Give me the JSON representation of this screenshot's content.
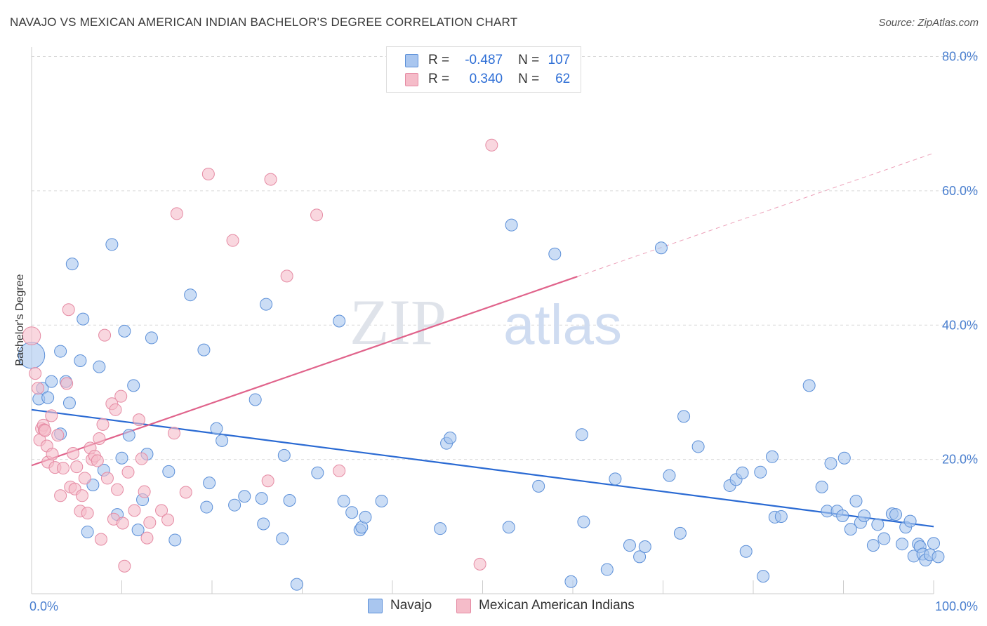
{
  "title": "NAVAJO VS MEXICAN AMERICAN INDIAN BACHELOR'S DEGREE CORRELATION CHART",
  "source": "Source: ZipAtlas.com",
  "watermark": {
    "zip": "ZIP",
    "atlas": "atlas"
  },
  "legend": {
    "r_label": "R =",
    "n_label": "N =",
    "rows": [
      {
        "r": "-0.487",
        "n": "107"
      },
      {
        "r": "0.340",
        "n": "62"
      }
    ]
  },
  "colors": {
    "navajo_fill": "#a9c6ef",
    "navajo_stroke": "#5b8fd8",
    "navajo_line": "#2a6ad3",
    "mexican_fill": "#f5bcc9",
    "mexican_stroke": "#e58aa3",
    "mexican_line": "#e0638b",
    "grid": "#d9d9d9",
    "tick_text": "#4a7fcf"
  },
  "chart_data": {
    "type": "scatter",
    "xlabel": "",
    "ylabel": "Bachelor's Degree",
    "xlim": [
      0,
      100
    ],
    "ylim": [
      0,
      80
    ],
    "x_tick_labels": [
      "0.0%",
      "100.0%"
    ],
    "y_ticks": [
      20,
      40,
      60,
      80
    ],
    "y_tick_labels": [
      "20.0%",
      "40.0%",
      "60.0%",
      "80.0%"
    ],
    "grid": "horizontal dashed",
    "legend_position": "top-center",
    "series": [
      {
        "name": "Navajo",
        "r": -0.487,
        "n": 107,
        "trend": {
          "x0": 0,
          "y0": 27.4,
          "x1": 100,
          "y1": 10.0,
          "solid_to": 100
        },
        "points": [
          [
            0,
            35.5,
            2.2
          ],
          [
            0.8,
            29,
            1
          ],
          [
            1.2,
            30.6,
            1
          ],
          [
            1.8,
            29.2,
            1
          ],
          [
            2.2,
            31.6,
            1
          ],
          [
            3.2,
            23.8,
            1
          ],
          [
            3.2,
            36.1,
            1
          ],
          [
            3.8,
            31.6,
            1
          ],
          [
            4.2,
            28.4,
            1
          ],
          [
            4.5,
            49.1,
            1
          ],
          [
            5.4,
            34.7,
            1
          ],
          [
            5.7,
            40.9,
            1
          ],
          [
            6.2,
            9.2,
            1
          ],
          [
            6.8,
            16.2,
            1
          ],
          [
            7.5,
            33.8,
            1
          ],
          [
            8,
            18.4,
            1
          ],
          [
            8.9,
            52.0,
            1
          ],
          [
            9.5,
            11.8,
            1
          ],
          [
            10,
            20.2,
            1
          ],
          [
            10.3,
            39.1,
            1
          ],
          [
            10.8,
            23.6,
            1
          ],
          [
            11.3,
            31.0,
            1
          ],
          [
            11.8,
            9.5,
            1
          ],
          [
            12.3,
            14.0,
            1
          ],
          [
            12.8,
            20.8,
            1
          ],
          [
            13.3,
            38.1,
            1
          ],
          [
            15.2,
            18.2,
            1
          ],
          [
            15.9,
            8.0,
            1
          ],
          [
            17.6,
            44.5,
            1
          ],
          [
            19.1,
            36.3,
            1
          ],
          [
            19.4,
            12.9,
            1
          ],
          [
            19.7,
            16.5,
            1
          ],
          [
            20.5,
            24.6,
            1
          ],
          [
            21.1,
            22.8,
            1
          ],
          [
            22.5,
            13.2,
            1
          ],
          [
            23.6,
            14.5,
            1
          ],
          [
            24.8,
            28.9,
            1
          ],
          [
            25.5,
            14.2,
            1
          ],
          [
            25.7,
            10.4,
            1
          ],
          [
            26.0,
            43.1,
            1
          ],
          [
            27.8,
            8.2,
            1
          ],
          [
            28.0,
            20.6,
            1
          ],
          [
            28.6,
            13.9,
            1
          ],
          [
            29.4,
            1.4,
            1
          ],
          [
            31.7,
            18.0,
            1
          ],
          [
            34.1,
            40.6,
            1
          ],
          [
            34.6,
            13.8,
            1
          ],
          [
            35.5,
            12.1,
            1
          ],
          [
            36.4,
            9.5,
            1
          ],
          [
            36.6,
            9.9,
            1
          ],
          [
            37.0,
            11.4,
            1
          ],
          [
            38.8,
            13.8,
            1
          ],
          [
            45.3,
            9.7,
            1
          ],
          [
            46.0,
            22.4,
            1
          ],
          [
            46.4,
            23.2,
            1
          ],
          [
            52.9,
            9.9,
            1
          ],
          [
            53.2,
            54.9,
            1
          ],
          [
            56.2,
            16.0,
            1
          ],
          [
            58.0,
            50.6,
            1
          ],
          [
            59.8,
            1.8,
            1
          ],
          [
            61.0,
            23.7,
            1
          ],
          [
            61.2,
            10.7,
            1
          ],
          [
            63.8,
            3.6,
            1
          ],
          [
            64.7,
            17.1,
            1
          ],
          [
            66.3,
            7.2,
            1
          ],
          [
            67.4,
            5.5,
            1
          ],
          [
            68.0,
            7.0,
            1
          ],
          [
            69.8,
            51.5,
            1
          ],
          [
            70.7,
            17.6,
            1
          ],
          [
            71.9,
            9.0,
            1
          ],
          [
            72.3,
            26.4,
            1
          ],
          [
            73.9,
            21.9,
            1
          ],
          [
            77.4,
            16.1,
            1
          ],
          [
            78.1,
            17.0,
            1
          ],
          [
            78.8,
            18.0,
            1
          ],
          [
            79.2,
            6.3,
            1
          ],
          [
            80.8,
            18.1,
            1
          ],
          [
            81.1,
            2.6,
            1
          ],
          [
            82.1,
            20.4,
            1
          ],
          [
            82.4,
            11.4,
            1
          ],
          [
            83.1,
            11.5,
            1
          ],
          [
            86.2,
            31.0,
            1
          ],
          [
            87.6,
            15.9,
            1
          ],
          [
            88.2,
            12.3,
            1
          ],
          [
            88.6,
            19.4,
            1
          ],
          [
            89.3,
            12.3,
            1
          ],
          [
            89.9,
            11.6,
            1
          ],
          [
            90.1,
            20.2,
            1
          ],
          [
            90.8,
            9.6,
            1
          ],
          [
            91.4,
            13.8,
            1
          ],
          [
            91.9,
            10.6,
            1
          ],
          [
            92.3,
            11.6,
            1
          ],
          [
            93.3,
            7.2,
            1
          ],
          [
            93.8,
            10.3,
            1
          ],
          [
            94.5,
            8.2,
            1
          ],
          [
            95.4,
            11.9,
            1
          ],
          [
            95.8,
            11.8,
            1
          ],
          [
            96.5,
            7.4,
            1
          ],
          [
            96.9,
            9.9,
            1
          ],
          [
            97.4,
            10.8,
            1
          ],
          [
            97.8,
            5.6,
            1
          ],
          [
            98.3,
            7.4,
            1
          ],
          [
            98.5,
            7.0,
            1
          ],
          [
            98.8,
            5.9,
            1
          ],
          [
            99.1,
            5.0,
            1
          ],
          [
            99.6,
            5.8,
            1
          ],
          [
            100,
            7.5,
            1
          ],
          [
            100.5,
            5.5,
            1
          ]
        ]
      },
      {
        "name": "Mexican American Indians",
        "r": 0.34,
        "n": 62,
        "trend": {
          "x0": 0,
          "y0": 19.1,
          "x1": 100,
          "y1": 65.6,
          "solid_to": 60.5
        },
        "points": [
          [
            0,
            38.4,
            1.5
          ],
          [
            0.4,
            32.8,
            1
          ],
          [
            0.7,
            30.6,
            1
          ],
          [
            0.9,
            22.9,
            1
          ],
          [
            1.1,
            24.6,
            1
          ],
          [
            1.3,
            25.1,
            1
          ],
          [
            1.4,
            24.4,
            1
          ],
          [
            1.5,
            24.3,
            1
          ],
          [
            1.7,
            22.0,
            1
          ],
          [
            1.8,
            19.6,
            1
          ],
          [
            2.2,
            26.5,
            1
          ],
          [
            2.3,
            20.8,
            1
          ],
          [
            2.6,
            18.8,
            1
          ],
          [
            2.9,
            23.6,
            1
          ],
          [
            3.2,
            14.6,
            1
          ],
          [
            3.5,
            18.7,
            1
          ],
          [
            3.9,
            31.3,
            1
          ],
          [
            4.1,
            42.3,
            1
          ],
          [
            4.3,
            15.9,
            1
          ],
          [
            4.6,
            20.9,
            1
          ],
          [
            4.8,
            15.6,
            1
          ],
          [
            5.0,
            18.9,
            1
          ],
          [
            5.4,
            12.3,
            1
          ],
          [
            5.6,
            14.6,
            1
          ],
          [
            5.9,
            17.2,
            1
          ],
          [
            6.2,
            12.0,
            1
          ],
          [
            6.5,
            21.7,
            1
          ],
          [
            6.7,
            20.0,
            1
          ],
          [
            7.0,
            20.5,
            1
          ],
          [
            7.3,
            19.8,
            1
          ],
          [
            7.5,
            23.1,
            1
          ],
          [
            7.7,
            8.1,
            1
          ],
          [
            7.9,
            25.2,
            1
          ],
          [
            8.1,
            38.5,
            1
          ],
          [
            8.4,
            17.2,
            1
          ],
          [
            8.9,
            28.3,
            1
          ],
          [
            9.1,
            11.1,
            1
          ],
          [
            9.3,
            27.4,
            1
          ],
          [
            9.5,
            15.5,
            1
          ],
          [
            9.9,
            29.4,
            1
          ],
          [
            10.1,
            10.5,
            1
          ],
          [
            10.3,
            4.1,
            1
          ],
          [
            10.7,
            18.1,
            1
          ],
          [
            11.4,
            12.4,
            1
          ],
          [
            11.9,
            25.9,
            1
          ],
          [
            12.2,
            20.1,
            1
          ],
          [
            12.5,
            15.2,
            1
          ],
          [
            12.8,
            8.3,
            1
          ],
          [
            13.1,
            10.6,
            1
          ],
          [
            14.4,
            12.4,
            1
          ],
          [
            15.1,
            11.0,
            1
          ],
          [
            15.8,
            23.9,
            1
          ],
          [
            16.1,
            56.6,
            1
          ],
          [
            17.1,
            15.1,
            1
          ],
          [
            19.6,
            62.5,
            1
          ],
          [
            22.3,
            52.6,
            1
          ],
          [
            26.2,
            16.8,
            1
          ],
          [
            26.5,
            61.7,
            1
          ],
          [
            28.3,
            47.3,
            1
          ],
          [
            31.6,
            56.4,
            1
          ],
          [
            34.1,
            18.3,
            1
          ],
          [
            49.7,
            4.4,
            1
          ],
          [
            51.0,
            66.8,
            1
          ]
        ]
      }
    ]
  },
  "bottom_legend": [
    "Navajo",
    "Mexican American Indians"
  ]
}
